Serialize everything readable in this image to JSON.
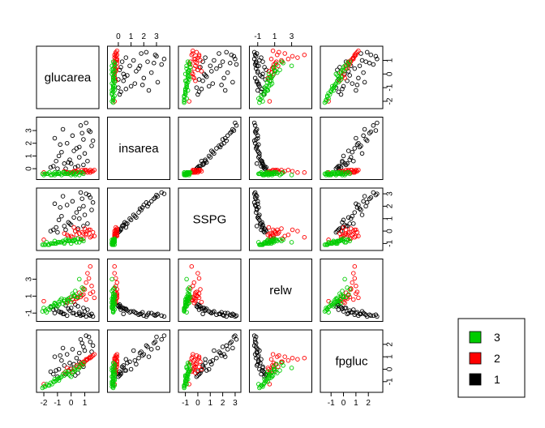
{
  "chart_data": {
    "type": "scatter-matrix",
    "variables": [
      "glucarea",
      "insarea",
      "SSPG",
      "relw",
      "fpgluc"
    ],
    "ranges": {
      "glucarea": [
        -2.3,
        1.8
      ],
      "insarea": [
        -0.6,
        3.8
      ],
      "SSPG": [
        -1.3,
        3.2
      ],
      "relw": [
        -1.6,
        5.0
      ],
      "fpgluc": [
        -1.6,
        2.9
      ]
    },
    "ticks": {
      "glucarea": [
        "-2",
        "-1",
        "0",
        "1"
      ],
      "insarea": [
        "0",
        "1",
        "2",
        "3"
      ],
      "SSPG": [
        "-1",
        "0",
        "1",
        "2",
        "3"
      ],
      "relw": [
        "-1",
        "1",
        "3"
      ],
      "fpgluc": [
        "-1",
        "0",
        "1",
        "2"
      ]
    },
    "tick_sides": {
      "top": [
        "insarea",
        "relw"
      ],
      "bottom": [
        "glucarea",
        "SSPG",
        "fpgluc"
      ],
      "left": [
        "insarea",
        "relw"
      ],
      "right": [
        "glucarea",
        "SSPG",
        "fpgluc"
      ]
    },
    "grid": false,
    "legend": {
      "placement": "bottom-right",
      "entries": [
        {
          "label": "3",
          "color": "#00cc00"
        },
        {
          "label": "2",
          "color": "#ff0000"
        },
        {
          "label": "1",
          "color": "#000000"
        }
      ]
    },
    "groups": [
      {
        "name": "1",
        "color": "#000000",
        "points": [
          [
            -0.8,
            1.9,
            1.9,
            -0.9,
            1.1
          ],
          [
            0.7,
            3.4,
            3.1,
            -1.3,
            2.4
          ],
          [
            1.3,
            3.0,
            2.9,
            -1.2,
            2.6
          ],
          [
            -0.5,
            0.4,
            0.4,
            -1.1,
            0.3
          ],
          [
            -1.3,
            0.2,
            0.1,
            -0.6,
            -0.4
          ],
          [
            0.1,
            2.6,
            2.4,
            -1.0,
            1.6
          ],
          [
            1.0,
            1.2,
            1.3,
            -0.8,
            1.5
          ],
          [
            -0.2,
            0.5,
            0.7,
            -0.5,
            -0.1
          ],
          [
            0.4,
            1.6,
            1.5,
            -1.2,
            0.9
          ],
          [
            1.6,
            2.2,
            2.3,
            -1.4,
            1.9
          ],
          [
            -1.0,
            0.0,
            -0.1,
            -0.2,
            -0.6
          ],
          [
            0.6,
            0.9,
            1.0,
            -0.9,
            0.6
          ],
          [
            -0.6,
            3.1,
            2.8,
            -1.1,
            1.7
          ],
          [
            0.9,
            0.3,
            0.4,
            -0.4,
            0.2
          ],
          [
            -1.5,
            0.1,
            0.0,
            -0.3,
            -0.2
          ],
          [
            0.2,
            1.4,
            1.1,
            -1.0,
            0.4
          ],
          [
            1.2,
            0.6,
            0.6,
            -0.6,
            0.8
          ],
          [
            -0.3,
            2.0,
            2.1,
            -1.3,
            1.2
          ],
          [
            0.8,
            2.8,
            2.6,
            -1.2,
            2.1
          ],
          [
            -0.9,
            1.0,
            0.9,
            -0.8,
            0.0
          ],
          [
            0.5,
            0.2,
            0.2,
            -0.2,
            -0.3
          ],
          [
            1.5,
            1.8,
            1.7,
            -1.1,
            1.4
          ],
          [
            -0.1,
            0.7,
            0.6,
            -0.7,
            0.5
          ],
          [
            -1.2,
            2.4,
            2.2,
            -1.0,
            1.0
          ],
          [
            0.3,
            0.1,
            0.0,
            0.0,
            -0.5
          ],
          [
            1.1,
            3.6,
            3.0,
            -1.4,
            2.7
          ],
          [
            -0.7,
            1.3,
            1.2,
            -0.9,
            0.7
          ],
          [
            0.0,
            0.4,
            0.5,
            -0.4,
            0.1
          ],
          [
            1.4,
            2.9,
            2.7,
            -1.3,
            2.2
          ],
          [
            -1.1,
            0.6,
            0.3,
            -0.5,
            -0.1
          ],
          [
            0.6,
            1.7,
            1.8,
            -1.1,
            1.3
          ],
          [
            -0.4,
            0.0,
            0.1,
            -0.1,
            -0.4
          ],
          [
            0.9,
            2.3,
            2.0,
            -1.2,
            1.8
          ]
        ]
      },
      {
        "name": "2",
        "color": "#ff0000",
        "points": [
          [
            0.9,
            -0.2,
            -0.2,
            1.2,
            0.4
          ],
          [
            0.5,
            -0.1,
            0.1,
            0.8,
            0.2
          ],
          [
            1.4,
            -0.3,
            -0.5,
            4.5,
            0.9
          ],
          [
            -0.2,
            -0.3,
            -0.4,
            0.5,
            -0.1
          ],
          [
            1.1,
            -0.1,
            -0.3,
            2.6,
            0.7
          ],
          [
            0.2,
            -0.2,
            0.3,
            0.3,
            0.0
          ],
          [
            1.6,
            -0.2,
            -0.1,
            1.5,
            1.1
          ],
          [
            0.7,
            -0.3,
            -0.6,
            0.9,
            0.5
          ],
          [
            -0.5,
            -0.2,
            -0.2,
            0.4,
            -0.3
          ],
          [
            1.2,
            -0.3,
            0.0,
            3.7,
            0.8
          ],
          [
            0.4,
            -0.2,
            -0.3,
            0.7,
            0.3
          ],
          [
            1.0,
            -0.1,
            0.2,
            1.8,
            0.6
          ],
          [
            0.1,
            -0.3,
            -0.5,
            0.6,
            -0.2
          ],
          [
            1.5,
            -0.2,
            -0.4,
            2.2,
            1.0
          ],
          [
            0.8,
            -0.1,
            -0.1,
            1.1,
            0.4
          ],
          [
            -0.3,
            -0.3,
            -0.3,
            0.2,
            0.1
          ],
          [
            1.3,
            -0.2,
            0.1,
            3.1,
            0.9
          ],
          [
            0.6,
            -0.3,
            -0.2,
            1.4,
            0.2
          ],
          [
            1.7,
            -0.1,
            -0.4,
            0.8,
            1.2
          ],
          [
            0.3,
            -0.2,
            0.0,
            1.0,
            -0.1
          ],
          [
            0.9,
            -0.3,
            -0.6,
            1.9,
            0.6
          ],
          [
            1.1,
            -0.2,
            -0.2,
            0.6,
            0.8
          ],
          [
            0.0,
            -0.3,
            -0.4,
            0.9,
            0.0
          ],
          [
            1.4,
            -0.1,
            0.1,
            1.3,
            1.0
          ],
          [
            -2.0,
            -0.3,
            -0.7,
            0.4,
            -1.2
          ]
        ]
      },
      {
        "name": "3",
        "color": "#00cc00",
        "points": [
          [
            -1.8,
            -0.4,
            -0.9,
            -0.9,
            -1.2
          ],
          [
            -1.2,
            -0.3,
            -0.8,
            0.1,
            -0.8
          ],
          [
            -0.5,
            -0.4,
            -1.0,
            0.6,
            -0.5
          ],
          [
            0.2,
            -0.3,
            -0.7,
            1.1,
            -0.2
          ],
          [
            -2.0,
            -0.5,
            -1.1,
            -0.4,
            -1.4
          ],
          [
            -0.9,
            -0.4,
            -0.9,
            0.3,
            -0.7
          ],
          [
            0.5,
            -0.3,
            -0.6,
            0.9,
            0.0
          ],
          [
            -1.5,
            -0.5,
            -1.0,
            -0.2,
            -1.1
          ],
          [
            -0.2,
            -0.4,
            -0.8,
            0.4,
            -0.4
          ],
          [
            0.8,
            -0.3,
            -0.7,
            2.0,
            0.3
          ],
          [
            -1.1,
            -0.4,
            -1.0,
            0.0,
            -0.9
          ],
          [
            -0.7,
            -0.5,
            -0.9,
            0.7,
            -0.6
          ],
          [
            0.1,
            -0.4,
            -0.8,
            1.3,
            -0.3
          ],
          [
            -1.6,
            -0.3,
            -1.1,
            -0.6,
            -1.3
          ],
          [
            -0.4,
            -0.4,
            -0.7,
            0.2,
            -0.2
          ],
          [
            0.6,
            -0.5,
            -0.9,
            3.0,
            0.1
          ],
          [
            -1.3,
            -0.4,
            -1.0,
            -0.1,
            -1.0
          ],
          [
            -0.1,
            -0.3,
            -0.8,
            0.8,
            -0.5
          ],
          [
            -0.8,
            -0.4,
            -0.9,
            0.5,
            -0.7
          ],
          [
            0.3,
            -0.5,
            -0.7,
            1.6,
            -0.1
          ],
          [
            -1.9,
            -0.4,
            -1.1,
            -0.7,
            -1.4
          ],
          [
            -0.6,
            -0.3,
            -0.8,
            0.1,
            -0.4
          ],
          [
            0.4,
            -0.4,
            -0.9,
            0.9,
            0.2
          ],
          [
            -1.4,
            -0.5,
            -1.0,
            -0.3,
            -1.2
          ],
          [
            -0.3,
            -0.4,
            -0.8,
            0.6,
            -0.3
          ],
          [
            0.7,
            -0.3,
            -0.7,
            1.2,
            0.4
          ],
          [
            -1.0,
            -0.4,
            -0.9,
            -0.2,
            -0.8
          ],
          [
            0.0,
            -0.5,
            -1.0,
            0.3,
            -0.6
          ],
          [
            -1.7,
            -0.4,
            -1.1,
            -0.5,
            -1.3
          ],
          [
            -0.5,
            -0.3,
            -0.9,
            0.4,
            -0.5
          ],
          [
            0.9,
            -0.4,
            -0.8,
            1.8,
            0.5
          ],
          [
            -1.2,
            -0.5,
            -1.0,
            0.2,
            -1.0
          ],
          [
            -0.2,
            -0.4,
            -0.7,
            0.7,
            -0.2
          ],
          [
            -2.1,
            -0.4,
            -1.1,
            -0.8,
            -1.5
          ],
          [
            -0.9,
            -0.3,
            -0.9,
            0.0,
            -0.9
          ],
          [
            0.2,
            -0.4,
            -0.8,
            1.0,
            0.0
          ]
        ]
      }
    ]
  }
}
